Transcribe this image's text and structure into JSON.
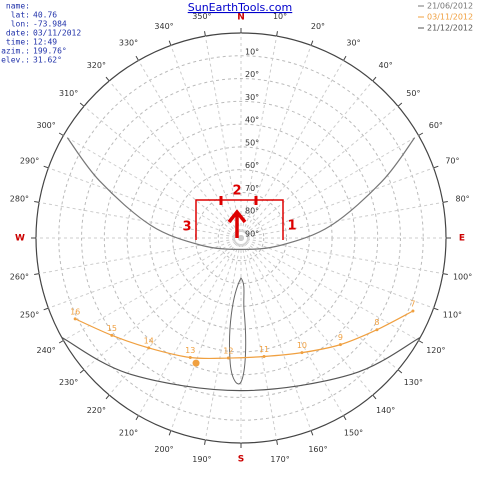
{
  "header": {
    "title": "SunEarthTools.com"
  },
  "info": [
    {
      "label": "name:"
    },
    {
      "label": "lat:",
      "value": "40.76"
    },
    {
      "label": "lon:",
      "value": "-73.984"
    },
    {
      "label": "date:",
      "value": "03/11/2012"
    },
    {
      "label": "time:",
      "value": "12:49"
    },
    {
      "label": "azim.:",
      "value": "199.76°"
    },
    {
      "label": "elev.:",
      "value": "31.62°"
    }
  ],
  "chart_data": {
    "type": "sunpath",
    "azimuth_ticks": [
      {
        "value": 0,
        "label": "N"
      },
      {
        "value": 10,
        "label": "10°"
      },
      {
        "value": 20,
        "label": "20°"
      },
      {
        "value": 30,
        "label": "30°"
      },
      {
        "value": 40,
        "label": "40°"
      },
      {
        "value": 50,
        "label": "50°"
      },
      {
        "value": 60,
        "label": "60°"
      },
      {
        "value": 70,
        "label": "70°"
      },
      {
        "value": 80,
        "label": "80°"
      },
      {
        "value": 90,
        "label": "E"
      },
      {
        "value": 100,
        "label": "100°"
      },
      {
        "value": 110,
        "label": "110°"
      },
      {
        "value": 120,
        "label": "120°"
      },
      {
        "value": 130,
        "label": "130°"
      },
      {
        "value": 140,
        "label": "140°"
      },
      {
        "value": 150,
        "label": "150°"
      },
      {
        "value": 160,
        "label": "160°"
      },
      {
        "value": 170,
        "label": "170°"
      },
      {
        "value": 180,
        "label": "S"
      },
      {
        "value": 190,
        "label": "190°"
      },
      {
        "value": 200,
        "label": "200°"
      },
      {
        "value": 210,
        "label": "210°"
      },
      {
        "value": 220,
        "label": "220°"
      },
      {
        "value": 230,
        "label": "230°"
      },
      {
        "value": 240,
        "label": "240°"
      },
      {
        "value": 250,
        "label": "250°"
      },
      {
        "value": 260,
        "label": "260°"
      },
      {
        "value": 270,
        "label": "W"
      },
      {
        "value": 280,
        "label": "280°"
      },
      {
        "value": 290,
        "label": "290°"
      },
      {
        "value": 300,
        "label": "300°"
      },
      {
        "value": 310,
        "label": "310°"
      },
      {
        "value": 320,
        "label": "320°"
      },
      {
        "value": 330,
        "label": "330°"
      },
      {
        "value": 340,
        "label": "340°"
      },
      {
        "value": 350,
        "label": "350°"
      }
    ],
    "elevation_ticks": [
      {
        "value": 10,
        "label": "10°"
      },
      {
        "value": 20,
        "label": "20°"
      },
      {
        "value": 30,
        "label": "30°"
      },
      {
        "value": 40,
        "label": "40°"
      },
      {
        "value": 50,
        "label": "50°"
      },
      {
        "value": 60,
        "label": "60°"
      },
      {
        "value": 70,
        "label": "70°"
      },
      {
        "value": 80,
        "label": "80°"
      },
      {
        "value": 90,
        "label": "90°"
      }
    ],
    "elevation_lim": [
      0,
      90
    ],
    "series": [
      {
        "name": "21/06/2012",
        "color": "#777777",
        "azimuth": [
          60,
          68,
          82,
          100,
          180,
          260,
          278,
          292,
          300
        ],
        "elevation": [
          2,
          23,
          50,
          72,
          85,
          72,
          50,
          23,
          2
        ]
      },
      {
        "name": "03/11/2012",
        "color": "#f0a040",
        "azimuth": [
          113,
          124,
          137,
          152,
          169,
          186,
          203,
          220,
          233,
          244
        ],
        "elevation": [
          8,
          18,
          26,
          33,
          37,
          37,
          33,
          27,
          19,
          9
        ],
        "point_labels": [
          "7",
          "8",
          "9",
          "10",
          "11",
          "12",
          "13",
          "14",
          "15",
          "16"
        ]
      },
      {
        "name": "21/12/2012",
        "color": "#555555",
        "azimuth": [
          119,
          141,
          180,
          219,
          241
        ],
        "elevation": [
          0,
          13,
          23,
          13,
          0
        ]
      }
    ],
    "sun": {
      "azimuth": 199.76,
      "elevation": 31.62,
      "color": "#f0a040"
    }
  },
  "annotations": [
    "1",
    "2",
    "3"
  ]
}
